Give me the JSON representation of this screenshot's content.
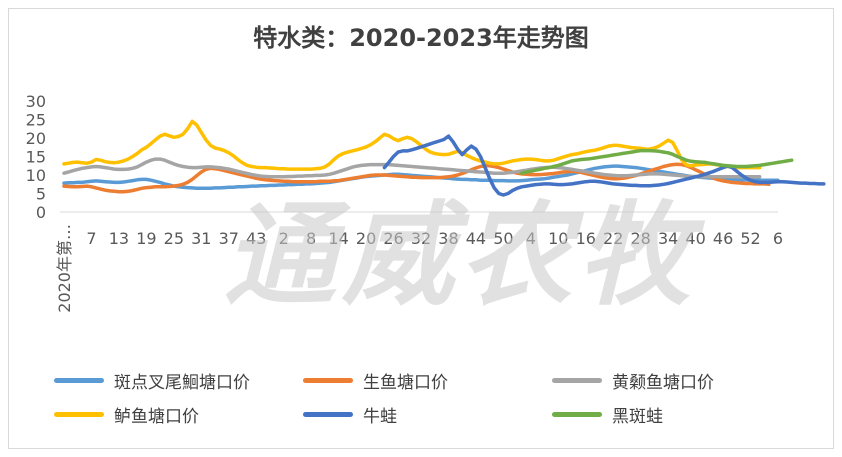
{
  "chart_data": {
    "type": "line",
    "title": "特水类：2020-2023年走势图",
    "watermark": "通威农牧",
    "ylim": [
      0,
      30
    ],
    "yticks": [
      0,
      5,
      10,
      15,
      20,
      25,
      30
    ],
    "first_label": "2020年第…",
    "xtick_labels": [
      "7",
      "13",
      "19",
      "25",
      "31",
      "37",
      "43",
      "2",
      "8",
      "14",
      "20",
      "26",
      "32",
      "38",
      "44",
      "50",
      "4",
      "10",
      "16",
      "22",
      "28",
      "34",
      "40",
      "46",
      "52",
      "6"
    ],
    "grid": false,
    "legend_position": "bottom",
    "series": [
      {
        "name": "斑点叉尾鮰塘口价",
        "color": "#5b9bd5",
        "start": 0,
        "values": [
          7.8,
          7.9,
          7.9,
          8.0,
          8.0,
          8.2,
          8.3,
          8.4,
          8.3,
          8.2,
          8.1,
          8.0,
          8.0,
          8.1,
          8.3,
          8.5,
          8.7,
          8.8,
          8.8,
          8.6,
          8.3,
          8.0,
          7.6,
          7.3,
          7.0,
          6.8,
          6.7,
          6.6,
          6.5,
          6.4,
          6.4,
          6.4,
          6.4,
          6.5,
          6.5,
          6.6,
          6.7,
          6.7,
          6.8,
          6.8,
          6.9,
          7.0,
          7.0,
          7.1,
          7.1,
          7.2,
          7.2,
          7.3,
          7.3,
          7.4,
          7.4,
          7.5,
          7.5,
          7.6,
          7.6,
          7.7,
          7.8,
          7.9,
          8.0,
          8.2,
          8.4,
          8.6,
          8.8,
          9.0,
          9.2,
          9.4,
          9.6,
          9.7,
          9.8,
          9.9,
          10.0,
          10.1,
          10.2,
          10.2,
          10.1,
          10.0,
          9.9,
          9.8,
          9.7,
          9.6,
          9.5,
          9.4,
          9.3,
          9.2,
          9.1,
          9.0,
          8.9,
          8.8,
          8.8,
          8.7,
          8.7,
          8.6,
          8.6,
          8.6,
          8.5,
          8.5,
          8.5,
          8.4,
          8.4,
          8.4,
          8.5,
          8.6,
          8.7,
          8.8,
          8.9,
          9.0,
          9.2,
          9.4,
          9.6,
          9.8,
          10.0,
          10.3,
          10.6,
          10.9,
          11.2,
          11.5,
          11.8,
          12.0,
          12.2,
          12.3,
          12.4,
          12.4,
          12.3,
          12.2,
          12.1,
          12.0,
          11.8,
          11.6,
          11.4,
          11.2,
          11.0,
          10.8,
          10.6,
          10.4,
          10.2,
          10.0,
          9.8,
          9.6,
          9.5,
          9.4,
          9.3,
          9.2,
          9.1,
          9.0,
          8.9,
          8.8,
          8.8,
          8.7,
          8.7,
          8.7,
          8.6,
          8.6,
          8.6,
          8.6,
          8.6,
          8.6,
          8.6
        ]
      },
      {
        "name": "生鱼塘口价",
        "color": "#ed7d31",
        "start": 0,
        "values": [
          7.0,
          6.9,
          6.8,
          6.8,
          6.9,
          7.0,
          6.8,
          6.5,
          6.2,
          5.9,
          5.7,
          5.6,
          5.5,
          5.5,
          5.6,
          5.8,
          6.1,
          6.4,
          6.6,
          6.7,
          6.8,
          6.8,
          6.8,
          6.9,
          7.0,
          7.2,
          7.5,
          8.0,
          8.8,
          9.8,
          10.8,
          11.5,
          11.8,
          11.7,
          11.5,
          11.2,
          10.9,
          10.6,
          10.3,
          10.0,
          9.7,
          9.4,
          9.1,
          8.9,
          8.7,
          8.6,
          8.5,
          8.4,
          8.3,
          8.3,
          8.2,
          8.2,
          8.2,
          8.2,
          8.2,
          8.2,
          8.3,
          8.3,
          8.3,
          8.4,
          8.5,
          8.7,
          8.9,
          9.1,
          9.3,
          9.5,
          9.7,
          9.9,
          10.0,
          10.0,
          10.0,
          9.9,
          9.8,
          9.7,
          9.6,
          9.5,
          9.4,
          9.4,
          9.3,
          9.3,
          9.3,
          9.3,
          9.3,
          9.4,
          9.5,
          9.7,
          10.0,
          10.4,
          10.9,
          11.4,
          11.9,
          12.3,
          12.5,
          12.5,
          12.3,
          12.0,
          11.6,
          11.2,
          10.8,
          10.5,
          10.3,
          10.2,
          10.1,
          10.1,
          10.1,
          10.2,
          10.3,
          10.4,
          10.6,
          10.8,
          10.9,
          11.0,
          10.9,
          10.7,
          10.4,
          10.1,
          9.8,
          9.5,
          9.3,
          9.1,
          9.0,
          9.0,
          9.1,
          9.3,
          9.6,
          9.9,
          10.3,
          10.7,
          11.1,
          11.5,
          11.9,
          12.3,
          12.6,
          12.8,
          12.9,
          12.8,
          12.5,
          12.0,
          11.4,
          10.8,
          10.2,
          9.6,
          9.1,
          8.7,
          8.4,
          8.2,
          8.0,
          7.9,
          7.8,
          7.7,
          7.7,
          7.6,
          7.6,
          7.6,
          7.5
        ]
      },
      {
        "name": "黄颡鱼塘口价",
        "color": "#a5a5a5",
        "start": 0,
        "values": [
          10.5,
          10.8,
          11.2,
          11.5,
          11.8,
          12.0,
          12.2,
          12.3,
          12.2,
          12.0,
          11.8,
          11.6,
          11.5,
          11.5,
          11.6,
          11.8,
          12.2,
          12.8,
          13.5,
          14.0,
          14.3,
          14.3,
          14.0,
          13.5,
          13.0,
          12.6,
          12.3,
          12.1,
          12.0,
          12.0,
          12.1,
          12.2,
          12.2,
          12.1,
          12.0,
          11.8,
          11.6,
          11.3,
          11.0,
          10.7,
          10.4,
          10.1,
          9.9,
          9.7,
          9.6,
          9.5,
          9.5,
          9.5,
          9.5,
          9.6,
          9.6,
          9.7,
          9.7,
          9.8,
          9.8,
          9.9,
          9.9,
          10.0,
          10.2,
          10.5,
          10.9,
          11.3,
          11.7,
          12.1,
          12.4,
          12.6,
          12.7,
          12.8,
          12.8,
          12.8,
          12.8,
          12.8,
          12.7,
          12.6,
          12.5,
          12.4,
          12.3,
          12.2,
          12.1,
          12.0,
          11.9,
          11.8,
          11.7,
          11.6,
          11.5,
          11.4,
          11.3,
          11.2,
          11.1,
          11.0,
          10.9,
          10.8,
          10.7,
          10.6,
          10.5,
          10.5,
          10.5,
          10.6,
          10.7,
          10.9,
          11.1,
          11.3,
          11.5,
          11.7,
          11.9,
          12.0,
          12.1,
          12.1,
          12.0,
          11.9,
          11.7,
          11.5,
          11.3,
          11.1,
          10.9,
          10.7,
          10.5,
          10.3,
          10.1,
          10.0,
          9.9,
          9.8,
          9.8,
          9.8,
          9.9,
          10.0,
          10.1,
          10.2,
          10.3,
          10.3,
          10.3,
          10.2,
          10.1,
          10.0,
          9.9,
          9.8,
          9.7,
          9.6,
          9.6,
          9.5,
          9.5,
          9.5,
          9.5,
          9.5,
          9.5,
          9.5,
          9.5,
          9.5,
          9.5,
          9.5,
          9.5,
          9.5,
          9.5
        ]
      },
      {
        "name": "鲈鱼塘口价",
        "color": "#ffc000",
        "start": 0,
        "values": [
          13.0,
          13.2,
          13.4,
          13.5,
          13.3,
          13.2,
          13.5,
          14.2,
          14.0,
          13.6,
          13.4,
          13.3,
          13.5,
          13.8,
          14.3,
          15.0,
          15.8,
          16.8,
          17.5,
          18.5,
          19.5,
          20.5,
          21.0,
          20.6,
          20.2,
          20.4,
          21.0,
          22.5,
          24.5,
          23.5,
          21.5,
          19.5,
          18.0,
          17.3,
          17.0,
          16.6,
          16.0,
          15.2,
          14.2,
          13.3,
          12.6,
          12.3,
          12.1,
          12.0,
          12.0,
          11.9,
          11.8,
          11.7,
          11.7,
          11.6,
          11.6,
          11.6,
          11.6,
          11.6,
          11.6,
          11.7,
          11.8,
          12.2,
          13.0,
          14.2,
          15.2,
          15.8,
          16.2,
          16.5,
          16.8,
          17.2,
          17.6,
          18.2,
          19.0,
          20.0,
          21.0,
          20.6,
          19.8,
          19.3,
          19.8,
          20.2,
          19.8,
          19.0,
          18.0,
          17.0,
          16.2,
          15.8,
          15.6,
          15.5,
          15.6,
          16.0,
          16.4,
          16.0,
          15.3,
          14.7,
          14.2,
          13.8,
          13.5,
          13.2,
          13.0,
          13.0,
          13.2,
          13.5,
          13.8,
          14.0,
          14.2,
          14.3,
          14.3,
          14.2,
          14.0,
          13.8,
          13.8,
          14.0,
          14.4,
          14.8,
          15.2,
          15.5,
          15.7,
          16.0,
          16.3,
          16.5,
          16.7,
          17.0,
          17.4,
          17.8,
          18.0,
          18.0,
          17.8,
          17.6,
          17.4,
          17.3,
          17.2,
          17.0,
          17.0,
          17.3,
          17.8,
          18.6,
          19.4,
          18.8,
          16.5,
          14.0,
          12.7,
          12.5,
          12.7,
          12.8,
          12.9,
          13.0,
          12.9,
          12.7,
          12.5,
          12.3,
          12.1,
          12.0,
          12.0,
          12.0,
          12.0,
          12.0,
          12.0
        ]
      },
      {
        "name": "牛蛙",
        "color": "#4472c4",
        "start": 70,
        "values": [
          12.0,
          13.5,
          15.0,
          16.2,
          16.5,
          16.5,
          16.8,
          17.2,
          17.6,
          18.0,
          18.4,
          18.8,
          19.2,
          19.6,
          20.5,
          19.0,
          17.0,
          15.5,
          16.8,
          17.8,
          17.0,
          15.0,
          12.0,
          9.0,
          6.5,
          5.0,
          4.6,
          5.0,
          5.8,
          6.4,
          6.8,
          7.0,
          7.2,
          7.4,
          7.5,
          7.6,
          7.6,
          7.5,
          7.4,
          7.4,
          7.5,
          7.6,
          7.8,
          8.0,
          8.2,
          8.3,
          8.3,
          8.2,
          8.0,
          7.8,
          7.6,
          7.5,
          7.4,
          7.3,
          7.2,
          7.2,
          7.1,
          7.1,
          7.1,
          7.2,
          7.3,
          7.5,
          7.7,
          8.0,
          8.3,
          8.6,
          8.9,
          9.2,
          9.5,
          9.8,
          10.2,
          10.6,
          11.0,
          11.5,
          12.0,
          12.4,
          12.0,
          11.0,
          10.0,
          9.2,
          8.6,
          8.2,
          8.0,
          8.0,
          8.0,
          8.1,
          8.2,
          8.2,
          8.1,
          8.0,
          7.9,
          7.8,
          7.8,
          7.7,
          7.7,
          7.6,
          7.6
        ]
      },
      {
        "name": "黑斑蛙",
        "color": "#70ad47",
        "start": 100,
        "values": [
          10.5,
          10.8,
          11.0,
          11.3,
          11.5,
          11.8,
          12.0,
          12.3,
          12.6,
          13.0,
          13.4,
          13.8,
          14.0,
          14.2,
          14.3,
          14.4,
          14.6,
          14.8,
          15.0,
          15.2,
          15.4,
          15.6,
          15.8,
          16.0,
          16.2,
          16.4,
          16.6,
          16.6,
          16.6,
          16.5,
          16.4,
          16.2,
          16.0,
          15.6,
          15.0,
          14.5,
          14.0,
          13.7,
          13.6,
          13.5,
          13.4,
          13.2,
          13.0,
          12.8,
          12.6,
          12.5,
          12.4,
          12.3,
          12.3,
          12.3,
          12.4,
          12.5,
          12.6,
          12.8,
          13.0,
          13.2,
          13.4,
          13.6,
          13.8,
          14.0
        ]
      }
    ]
  }
}
